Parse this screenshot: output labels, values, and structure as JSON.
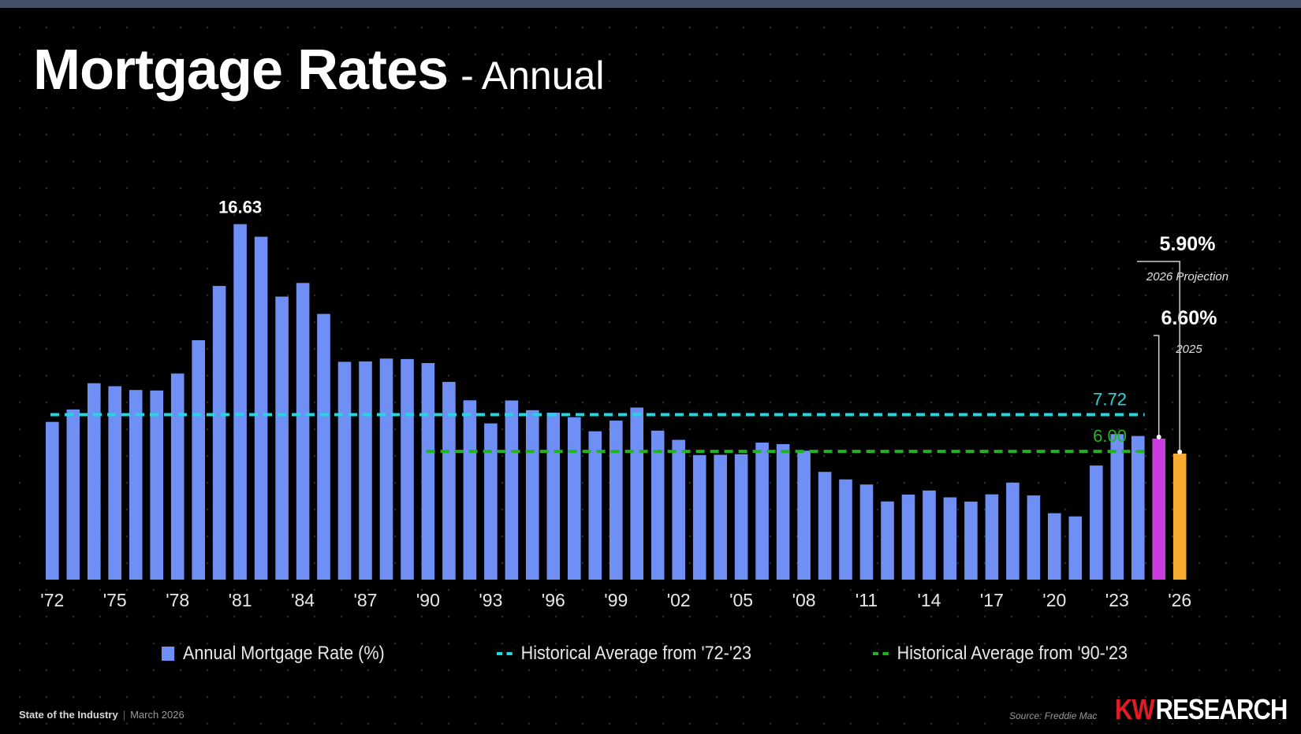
{
  "title": "Mortgage Rates",
  "title_separator": "-",
  "subtitle": "Annual",
  "chart_data": {
    "type": "bar",
    "title": "Mortgage Rates",
    "subtitle": "Annual",
    "xlabel": "",
    "ylabel": "",
    "ylim": [
      0,
      17.5
    ],
    "grid": false,
    "legend_position": "bottom",
    "categories": [
      "1972",
      "1973",
      "1974",
      "1975",
      "1976",
      "1977",
      "1978",
      "1979",
      "1980",
      "1981",
      "1982",
      "1983",
      "1984",
      "1985",
      "1986",
      "1987",
      "1988",
      "1989",
      "1990",
      "1991",
      "1992",
      "1993",
      "1994",
      "1995",
      "1996",
      "1997",
      "1998",
      "1999",
      "2000",
      "2001",
      "2002",
      "2003",
      "2004",
      "2005",
      "2006",
      "2007",
      "2008",
      "2009",
      "2010",
      "2011",
      "2012",
      "2013",
      "2014",
      "2015",
      "2016",
      "2017",
      "2018",
      "2019",
      "2020",
      "2021",
      "2022",
      "2023",
      "2024",
      "2025",
      "2026"
    ],
    "tick_labels": [
      "'72",
      "'75",
      "'78",
      "'81",
      "'84",
      "'87",
      "'90",
      "'93",
      "'96",
      "'99",
      "'02",
      "'05",
      "'08",
      "'11",
      "'14",
      "'17",
      "'20",
      "'23",
      "'26"
    ],
    "tick_every": 3,
    "series": [
      {
        "name": "Annual Mortgage Rate (%)",
        "color": "#6f8ff5",
        "values": [
          7.38,
          7.96,
          9.19,
          9.05,
          8.87,
          8.85,
          9.64,
          11.2,
          13.74,
          16.63,
          16.04,
          13.24,
          13.88,
          12.43,
          10.19,
          10.21,
          10.34,
          10.32,
          10.13,
          9.25,
          8.39,
          7.31,
          8.38,
          7.93,
          7.81,
          7.6,
          6.94,
          7.44,
          8.05,
          6.97,
          6.54,
          5.83,
          5.84,
          5.87,
          6.41,
          6.34,
          6.03,
          5.04,
          4.69,
          4.45,
          3.66,
          3.98,
          4.17,
          3.85,
          3.65,
          3.99,
          4.54,
          3.94,
          3.11,
          2.96,
          5.34,
          6.81,
          6.72,
          6.6,
          5.9
        ]
      }
    ],
    "highlights": [
      {
        "category": "2025",
        "color": "#c93ce0"
      },
      {
        "category": "2026",
        "color": "#f7ac2f"
      }
    ],
    "reference_lines": [
      {
        "name": "Historical Average from '72-'23",
        "value": 7.72,
        "label": "7.72",
        "from": "1972",
        "to": "2024",
        "color": "#26d6de"
      },
      {
        "name": "Historical Average from '90-'23",
        "value": 6.0,
        "label": "6.00",
        "from": "1990",
        "to": "2024",
        "color": "#1eb51e"
      }
    ],
    "annotations": [
      {
        "category": "1981",
        "text": "16.63"
      },
      {
        "category": "2025",
        "text": "6.60%",
        "caption": "2025"
      },
      {
        "category": "2026",
        "text": "5.90%",
        "caption": "2026 Projection"
      }
    ]
  },
  "legend": {
    "bar_label": "Annual Mortgage Rate (%)",
    "avg_all_label": "Historical Average from '72-'23",
    "avg_90_label": "Historical Average from '90-'23"
  },
  "footer": {
    "org": "State of the Industry",
    "separator": "|",
    "date": "March 2026",
    "source": "Source: Freddie Mac",
    "brand_kw": "KW",
    "brand_research": "RESEARCH"
  },
  "colors": {
    "background": "#000000",
    "bar": "#6f8ff5",
    "bar_2025": "#c93ce0",
    "bar_2026": "#f7ac2f",
    "avg_all": "#26d6de",
    "avg_90": "#1eb51e",
    "brand_red": "#e31b23"
  }
}
